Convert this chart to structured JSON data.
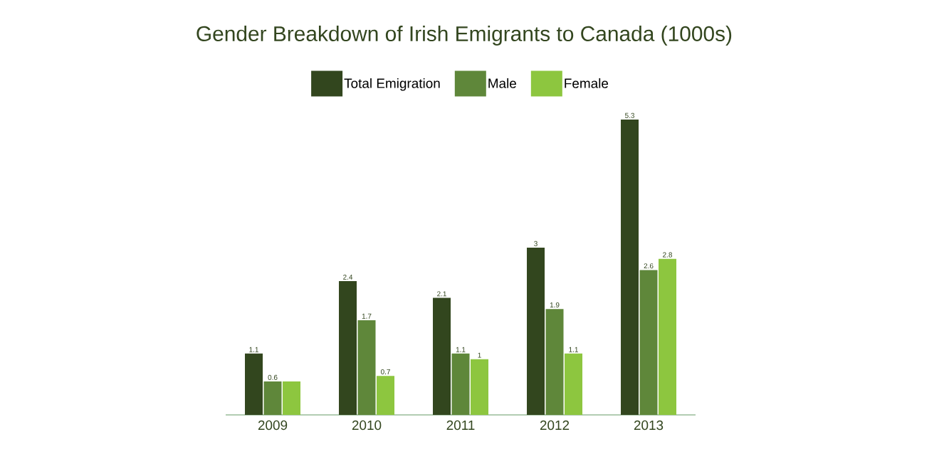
{
  "chart_data": {
    "type": "bar",
    "title": "Gender Breakdown of Irish Emigrants to Canada (1000s)",
    "categories": [
      "2009",
      "2010",
      "2011",
      "2012",
      "2013"
    ],
    "series": [
      {
        "name": "Total Emigration",
        "color": "#32461e",
        "values": [
          1.1,
          2.4,
          2.1,
          3,
          5.3
        ],
        "value_labels": [
          "1.1",
          "2.4",
          "2.1",
          "3",
          "5.3"
        ]
      },
      {
        "name": "Male",
        "color": "#5f873a",
        "values": [
          0.6,
          1.7,
          1.1,
          1.9,
          2.6
        ],
        "value_labels": [
          "0.6",
          "1.7",
          "1.1",
          "1.9",
          "2.6"
        ]
      },
      {
        "name": "Female",
        "color": "#8dc63f",
        "values": [
          0.6,
          0.7,
          1,
          1.1,
          2.8
        ],
        "value_labels": [
          null,
          "0.7",
          "1",
          "1.1",
          "2.8"
        ]
      }
    ],
    "legend": "top"
  }
}
